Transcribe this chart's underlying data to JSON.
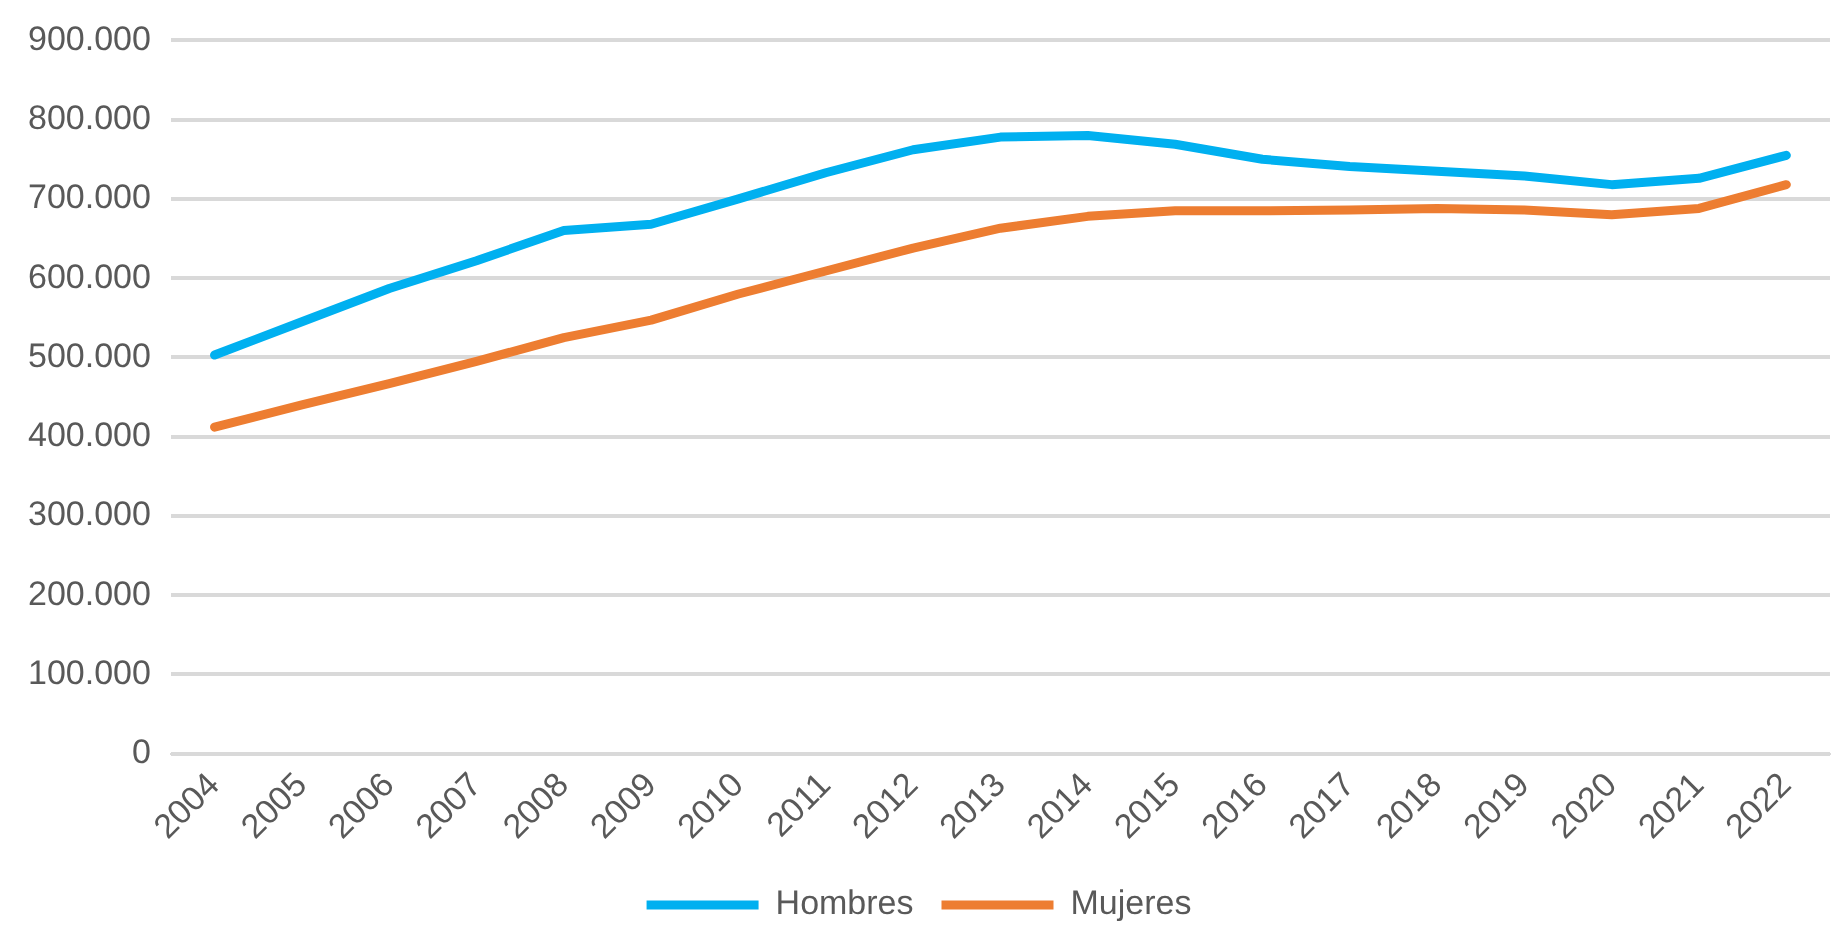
{
  "chart_data": {
    "type": "line",
    "categories": [
      "2004",
      "2005",
      "2006",
      "2007",
      "2008",
      "2009",
      "2010",
      "2011",
      "2012",
      "2013",
      "2014",
      "2015",
      "2016",
      "2017",
      "2018",
      "2019",
      "2020",
      "2021",
      "2022"
    ],
    "series": [
      {
        "name": "Hombres",
        "color": "#00b0f0",
        "values": [
          503000,
          545000,
          587000,
          622000,
          660000,
          668000,
          700000,
          733000,
          762000,
          778000,
          780000,
          769000,
          750000,
          741000,
          735000,
          729000,
          718000,
          726000,
          755000
        ]
      },
      {
        "name": "Mujeres",
        "color": "#ed7d31",
        "values": [
          412000,
          440000,
          467000,
          495000,
          525000,
          547000,
          580000,
          609000,
          638000,
          663000,
          678000,
          685000,
          685000,
          686000,
          688000,
          686000,
          680000,
          688000,
          718000
        ]
      }
    ],
    "ylim": [
      0,
      900000
    ],
    "yticks": [
      0,
      {
        "value": 100000,
        "label": "100.000"
      },
      {
        "value": 200000,
        "label": "200.000"
      },
      {
        "value": 300000,
        "label": "300.000"
      },
      {
        "value": 400000,
        "label": "400.000"
      },
      {
        "value": 500000,
        "label": "500.000"
      },
      {
        "value": 600000,
        "label": "600.000"
      },
      {
        "value": 700000,
        "label": "700.000"
      },
      {
        "value": 800000,
        "label": "800.000"
      },
      {
        "value": 900000,
        "label": "900.000"
      }
    ],
    "grid": "y",
    "legend": "bottom",
    "marker": "none",
    "line_style": "solid"
  }
}
